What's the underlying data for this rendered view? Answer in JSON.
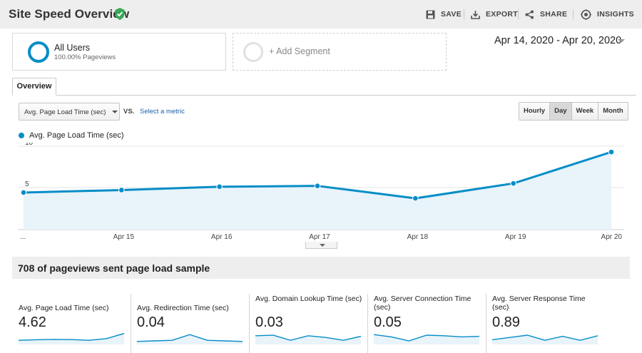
{
  "header": {
    "title": "Site Speed Overview",
    "save_label": "SAVE",
    "export_label": "EXPORT",
    "share_label": "SHARE",
    "insights_label": "INSIGHTS"
  },
  "segments": {
    "all_users": {
      "name": "All Users",
      "sub": "100.00% Pageviews"
    },
    "add_segment_label": "+ Add Segment"
  },
  "date_range": "Apr 14, 2020 - Apr 20, 2020",
  "tabs": [
    {
      "label": "Overview",
      "active": true
    }
  ],
  "controls": {
    "metric_select": "Avg. Page Load Time (sec)",
    "vs_label": "VS.",
    "select_metric_link": "Select a metric",
    "time_buttons": [
      "Hourly",
      "Day",
      "Week",
      "Month"
    ],
    "active_time_button": "Day"
  },
  "colors": {
    "accent": "#058dc7",
    "fill": "#e8f3fa",
    "header_bg": "#eeeeee",
    "verified": "#3aa757"
  },
  "chart_data": {
    "type": "area",
    "series": [
      {
        "name": "Avg. Page Load Time (sec)",
        "values": [
          4.4,
          4.7,
          5.1,
          5.2,
          3.7,
          5.5,
          9.3
        ]
      }
    ],
    "x": [
      "Apr 14",
      "Apr 15",
      "Apr 16",
      "Apr 17",
      "Apr 18",
      "Apr 19",
      "Apr 20"
    ],
    "x_tick_labels": [
      "...",
      "Apr 15",
      "Apr 16",
      "Apr 17",
      "Apr 18",
      "Apr 19",
      "Apr 20"
    ],
    "y_ticks": [
      5,
      10
    ],
    "ylim": [
      0,
      10
    ],
    "grid": true,
    "legend": "top-left"
  },
  "sample_text": "708 of pageviews sent page load sample",
  "metrics": [
    {
      "label": "Avg. Page Load Time (sec)",
      "value": "4.62",
      "spark": [
        0.3,
        0.35,
        0.38,
        0.36,
        0.3,
        0.45,
        0.9
      ]
    },
    {
      "label": "Avg. Redirection Time (sec)",
      "value": "0.04",
      "spark": [
        0.2,
        0.25,
        0.3,
        0.8,
        0.3,
        0.25,
        0.2
      ]
    },
    {
      "label": "Avg. Domain Lookup Time (sec)",
      "value": "0.03",
      "spark": [
        0.7,
        0.75,
        0.3,
        0.7,
        0.55,
        0.3,
        0.65
      ]
    },
    {
      "label": "Avg. Server Connection Time (sec)",
      "value": "0.05",
      "spark": [
        0.8,
        0.6,
        0.25,
        0.75,
        0.7,
        0.6,
        0.65
      ]
    },
    {
      "label": "Avg. Server Response Time (sec)",
      "value": "0.89",
      "spark": [
        0.35,
        0.55,
        0.75,
        0.3,
        0.65,
        0.3,
        0.7
      ]
    }
  ]
}
